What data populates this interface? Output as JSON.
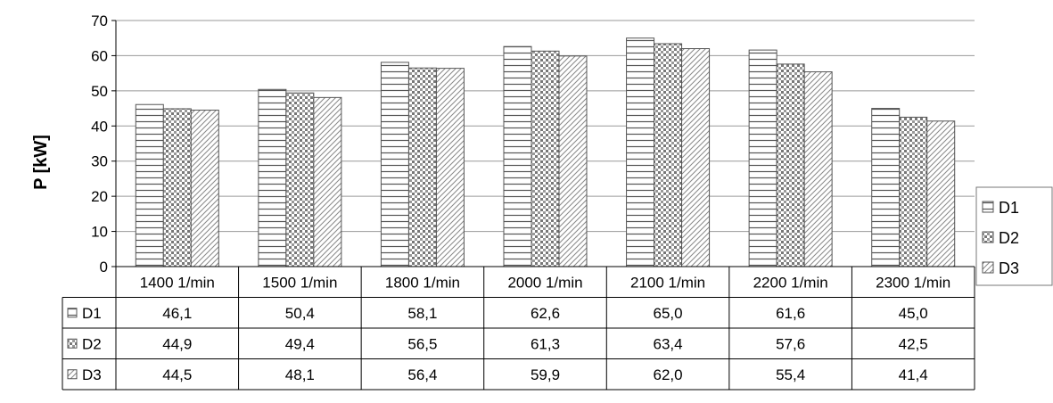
{
  "chart_data": {
    "type": "bar",
    "title": "",
    "ylabel": "P [kW]",
    "xlabel": "",
    "ylim": [
      0,
      70
    ],
    "yticks": [
      0,
      10,
      20,
      30,
      40,
      50,
      60,
      70
    ],
    "grid": true,
    "legend_position": "right",
    "categories": [
      "1400 1/min",
      "1500 1/min",
      "1800 1/min",
      "2000 1/min",
      "2100 1/min",
      "2200 1/min",
      "2300 1/min"
    ],
    "series": [
      {
        "name": "D1",
        "pattern": "horizontal-lines",
        "values": [
          46.1,
          50.4,
          58.1,
          62.6,
          65.0,
          61.6,
          45.0
        ],
        "labels": [
          "46,1",
          "50,4",
          "58,1",
          "62,6",
          "65,0",
          "61,6",
          "45,0"
        ]
      },
      {
        "name": "D2",
        "pattern": "dots",
        "values": [
          44.9,
          49.4,
          56.5,
          61.3,
          63.4,
          57.6,
          42.5
        ],
        "labels": [
          "44,9",
          "49,4",
          "56,5",
          "61,3",
          "63,4",
          "57,6",
          "42,5"
        ]
      },
      {
        "name": "D3",
        "pattern": "diagonal-lines",
        "values": [
          44.5,
          48.1,
          56.4,
          59.9,
          62.0,
          55.4,
          41.4
        ],
        "labels": [
          "44,5",
          "48,1",
          "56,4",
          "59,9",
          "62,0",
          "55,4",
          "41,4"
        ]
      }
    ]
  },
  "colors": {
    "bar_fill": "#ffffff",
    "bar_stroke": "#555555",
    "grid": "#999999",
    "text": "#000000"
  }
}
